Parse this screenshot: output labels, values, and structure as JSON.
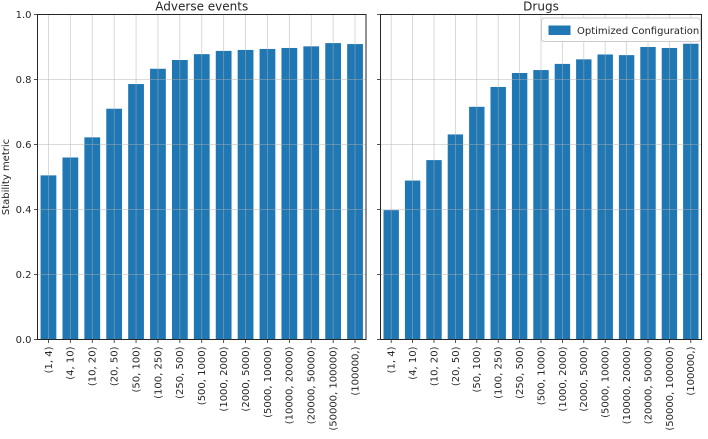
{
  "figure": {
    "bar_color": "#1f77b4",
    "series_name": "Optimized Configuration",
    "background": "#ffffff"
  },
  "axis": {
    "ylabel": "Stability metric",
    "yticks": [
      "0.0",
      "0.2",
      "0.4",
      "0.6",
      "0.8",
      "1.0"
    ],
    "ylim": [
      0,
      1
    ],
    "grid": "on"
  },
  "chart_data": [
    {
      "type": "bar",
      "title": "Adverse events",
      "ylabel": "Stability metric",
      "xlabel": "",
      "ylim": [
        0,
        1
      ],
      "grid": true,
      "categories": [
        "(1, 4)",
        "(4, 10)",
        "(10, 20)",
        "(20, 50)",
        "(50, 100)",
        "(100, 250)",
        "(250, 500)",
        "(500, 1000)",
        "(1000, 2000)",
        "(2000, 5000)",
        "(5000, 10000)",
        "(10000, 20000)",
        "(20000, 50000)",
        "(50000, 100000)",
        "(100000,)"
      ],
      "series": [
        {
          "name": "Optimized Configuration",
          "values": [
            0.505,
            0.56,
            0.622,
            0.71,
            0.786,
            0.833,
            0.86,
            0.878,
            0.888,
            0.891,
            0.894,
            0.897,
            0.902,
            0.912,
            0.909
          ]
        }
      ]
    },
    {
      "type": "bar",
      "title": "Drugs",
      "ylabel": "Stability metric",
      "xlabel": "",
      "ylim": [
        0,
        1
      ],
      "grid": true,
      "legend": {
        "label": "Optimized Configuration",
        "position": "upper right"
      },
      "categories": [
        "(1, 4)",
        "(4, 10)",
        "(10, 20)",
        "(20, 50)",
        "(50, 100)",
        "(100, 250)",
        "(250, 500)",
        "(500, 1000)",
        "(1000, 2000)",
        "(2000, 5000)",
        "(5000, 10000)",
        "(10000, 20000)",
        "(20000, 50000)",
        "(50000, 100000)",
        "(100000,)"
      ],
      "series": [
        {
          "name": "Optimized Configuration",
          "values": [
            0.398,
            0.489,
            0.552,
            0.631,
            0.716,
            0.777,
            0.82,
            0.829,
            0.848,
            0.862,
            0.877,
            0.875,
            0.9,
            0.897,
            0.91
          ]
        }
      ]
    }
  ]
}
